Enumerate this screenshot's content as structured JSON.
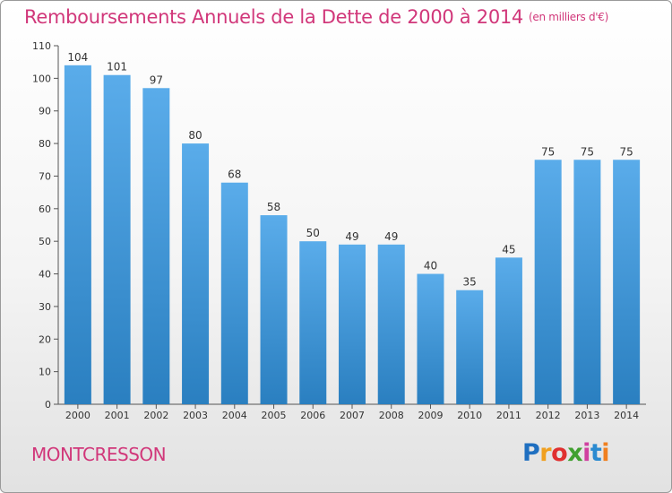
{
  "chart_data": {
    "type": "bar",
    "title": "Remboursements Annuels de la Dette de 2000 à 2014",
    "subtitle": "(en milliers d'€)",
    "categories": [
      "2000",
      "2001",
      "2002",
      "2003",
      "2004",
      "2005",
      "2006",
      "2007",
      "2008",
      "2009",
      "2010",
      "2011",
      "2012",
      "2013",
      "2014"
    ],
    "values": [
      104,
      101,
      97,
      80,
      68,
      58,
      50,
      49,
      49,
      40,
      35,
      45,
      75,
      75,
      75
    ],
    "ylim": [
      0,
      110
    ],
    "yticks": [
      0,
      10,
      20,
      30,
      40,
      50,
      60,
      70,
      80,
      90,
      100,
      110
    ],
    "grid": false,
    "bar_color_top": "#5aacea",
    "bar_color_bottom": "#2a7fc0"
  },
  "footer": {
    "commune": "MONTCRESSON",
    "logo_text": "Proxiti",
    "logo_letters": [
      "P",
      "r",
      "o",
      "x",
      "i",
      "t",
      "i"
    ],
    "logo_colors": [
      "#1f6fc0",
      "#f0a020",
      "#e03030",
      "#40a030",
      "#d040a0",
      "#2a8ad0",
      "#f08020"
    ]
  },
  "colors": {
    "accent": "#d1377a",
    "axis": "#555555"
  }
}
